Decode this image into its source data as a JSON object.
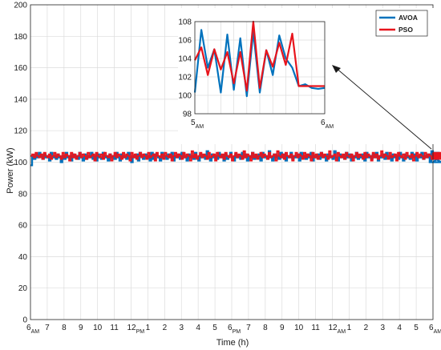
{
  "chart_data": [
    {
      "type": "line",
      "role": "main",
      "xlabel": "Time (h)",
      "ylabel": "Power (kW)",
      "ylim": [
        0,
        200
      ],
      "y_ticks": [
        0,
        20,
        40,
        60,
        80,
        100,
        120,
        140,
        160,
        180,
        200
      ],
      "xlim": [
        0,
        24
      ],
      "x_ticks": [
        {
          "h": 0,
          "num": "6",
          "sub": "AM"
        },
        {
          "h": 1,
          "num": "7",
          "sub": ""
        },
        {
          "h": 2,
          "num": "8",
          "sub": ""
        },
        {
          "h": 3,
          "num": "9",
          "sub": ""
        },
        {
          "h": 4,
          "num": "10",
          "sub": ""
        },
        {
          "h": 5,
          "num": "11",
          "sub": ""
        },
        {
          "h": 6,
          "num": "12",
          "sub": "PM"
        },
        {
          "h": 7,
          "num": "1",
          "sub": ""
        },
        {
          "h": 8,
          "num": "2",
          "sub": ""
        },
        {
          "h": 9,
          "num": "3",
          "sub": ""
        },
        {
          "h": 10,
          "num": "4",
          "sub": ""
        },
        {
          "h": 11,
          "num": "5",
          "sub": ""
        },
        {
          "h": 12,
          "num": "6",
          "sub": "PM"
        },
        {
          "h": 13,
          "num": "7",
          "sub": ""
        },
        {
          "h": 14,
          "num": "8",
          "sub": ""
        },
        {
          "h": 15,
          "num": "9",
          "sub": ""
        },
        {
          "h": 16,
          "num": "10",
          "sub": ""
        },
        {
          "h": 17,
          "num": "11",
          "sub": ""
        },
        {
          "h": 18,
          "num": "12",
          "sub": "AM"
        },
        {
          "h": 19,
          "num": "1",
          "sub": ""
        },
        {
          "h": 20,
          "num": "2",
          "sub": ""
        },
        {
          "h": 21,
          "num": "3",
          "sub": ""
        },
        {
          "h": 22,
          "num": "4",
          "sub": ""
        },
        {
          "h": 23,
          "num": "5",
          "sub": ""
        },
        {
          "h": 24,
          "num": "6",
          "sub": "AM"
        }
      ],
      "grid": true,
      "step": 0.1,
      "series": [
        {
          "name": "AVOA",
          "color": "#0072BD",
          "values": [
            98,
            104,
            102,
            105,
            103,
            106,
            104,
            102,
            105,
            103,
            104,
            101,
            106,
            103,
            104,
            102,
            105,
            103,
            100,
            104,
            102,
            106,
            103,
            104,
            101,
            105,
            103,
            104,
            102,
            106,
            103,
            101,
            105,
            102,
            104,
            103,
            106,
            102,
            104,
            101,
            105,
            103,
            102,
            106,
            103,
            104,
            101,
            105,
            103,
            104,
            102,
            106,
            103,
            101,
            105,
            103,
            104,
            102,
            106,
            103,
            100,
            104,
            103,
            105,
            101,
            106,
            104,
            102,
            105,
            103,
            104,
            101,
            106,
            102,
            105,
            104,
            103,
            101,
            106,
            103,
            104,
            102,
            105,
            103,
            106,
            101,
            104,
            103,
            105,
            102,
            106,
            103,
            104,
            101,
            105,
            103,
            104,
            102,
            106,
            103,
            101,
            105,
            103,
            104,
            102,
            107,
            103,
            101,
            105,
            103,
            104,
            102,
            106,
            103,
            104,
            101,
            105,
            102,
            104,
            106,
            103,
            101,
            105,
            103,
            104,
            102,
            106,
            103,
            105,
            101,
            104,
            103,
            106,
            102,
            104,
            103,
            105,
            101,
            106,
            103,
            104,
            102,
            107,
            103,
            101,
            105,
            103,
            104,
            102,
            106,
            103,
            105,
            101,
            104,
            103,
            106,
            102,
            104,
            103,
            105,
            101,
            106,
            103,
            104,
            102,
            105,
            103,
            106,
            101,
            104,
            103,
            105,
            102,
            106,
            103,
            104,
            101,
            105,
            103,
            104,
            102,
            107,
            103,
            101,
            105,
            103,
            104,
            102,
            106,
            103,
            105,
            101,
            104,
            103,
            106,
            102,
            104,
            103,
            105,
            101,
            106,
            103,
            104,
            102,
            105,
            103,
            106,
            101,
            104,
            103,
            105,
            102,
            106,
            103,
            104,
            101,
            105,
            103,
            104,
            102,
            106,
            103,
            101,
            105,
            103,
            104,
            102,
            106,
            103,
            105,
            101,
            104,
            103,
            106,
            102,
            104,
            103,
            105,
            100,
            107,
            103,
            104,
            102,
            106,
            103,
            100,
            105,
            103
          ]
        },
        {
          "name": "PSO",
          "color": "#E8141C",
          "values": [
            104,
            105,
            103,
            106,
            104,
            103,
            105,
            102,
            106,
            104,
            103,
            105,
            102,
            104,
            106,
            103,
            105,
            104,
            102,
            106,
            103,
            105,
            104,
            101,
            106,
            103,
            105,
            102,
            104,
            106,
            103,
            105,
            104,
            102,
            106,
            103,
            104,
            105,
            101,
            106,
            104,
            103,
            105,
            102,
            106,
            104,
            103,
            105,
            101,
            104,
            106,
            103,
            105,
            104,
            102,
            106,
            103,
            105,
            104,
            101,
            106,
            103,
            105,
            102,
            104,
            106,
            103,
            105,
            104,
            102,
            106,
            103,
            104,
            105,
            101,
            106,
            104,
            103,
            105,
            102,
            106,
            104,
            103,
            105,
            101,
            104,
            106,
            103,
            105,
            104,
            102,
            106,
            103,
            105,
            104,
            101,
            107,
            103,
            105,
            102,
            104,
            106,
            103,
            105,
            104,
            102,
            106,
            103,
            104,
            105,
            101,
            106,
            104,
            103,
            105,
            102,
            106,
            104,
            103,
            105,
            101,
            104,
            106,
            103,
            105,
            104,
            102,
            107,
            103,
            105,
            104,
            101,
            106,
            103,
            105,
            102,
            104,
            106,
            103,
            105,
            104,
            102,
            106,
            103,
            104,
            105,
            101,
            107,
            104,
            103,
            105,
            102,
            106,
            104,
            103,
            105,
            101,
            104,
            106,
            103,
            105,
            104,
            102,
            106,
            103,
            105,
            104,
            101,
            106,
            103,
            105,
            102,
            104,
            106,
            103,
            105,
            104,
            102,
            107,
            103,
            104,
            105,
            101,
            106,
            104,
            103,
            105,
            102,
            106,
            104,
            103,
            105,
            101,
            104,
            106,
            103,
            105,
            104,
            102,
            106,
            103,
            105,
            104,
            101,
            106,
            103,
            105,
            102,
            104,
            107,
            103,
            105,
            104,
            102,
            106,
            103,
            104,
            105,
            101,
            106,
            104,
            103,
            105,
            102,
            106,
            104,
            103,
            105,
            101,
            104,
            106,
            103,
            105,
            104,
            102,
            106,
            103,
            105,
            104,
            102,
            106,
            103,
            105,
            102,
            104,
            106,
            103,
            105,
            104,
            102,
            106
          ]
        }
      ]
    },
    {
      "type": "line",
      "role": "inset",
      "ylim": [
        98,
        108
      ],
      "y_ticks": [
        98,
        100,
        102,
        104,
        106,
        108
      ],
      "xlim": [
        5,
        6
      ],
      "x_ticks": [
        {
          "h": 5,
          "num": "5",
          "sub": "AM"
        },
        {
          "h": 6,
          "num": "6",
          "sub": "AM"
        }
      ],
      "grid": true,
      "series": [
        {
          "name": "AVOA",
          "color": "#0072BD",
          "x": [
            5,
            5.05,
            5.1,
            5.15,
            5.2,
            5.25,
            5.3,
            5.35,
            5.4,
            5.45,
            5.5,
            5.55,
            5.6,
            5.65,
            5.7,
            5.75,
            5.8,
            5.85,
            5.9,
            5.95,
            6
          ],
          "values": [
            100.3,
            107.1,
            103.0,
            105.0,
            100.3,
            106.6,
            100.6,
            106.2,
            99.9,
            106.9,
            100.3,
            104.9,
            102.2,
            106.5,
            104.0,
            103.0,
            101.0,
            101.2,
            100.8,
            100.7,
            100.8
          ]
        },
        {
          "name": "PSO",
          "color": "#E8141C",
          "x": [
            5,
            5.05,
            5.1,
            5.15,
            5.2,
            5.25,
            5.3,
            5.35,
            5.4,
            5.45,
            5.5,
            5.55,
            5.6,
            5.65,
            5.7,
            5.75,
            5.8,
            5.85,
            5.9,
            5.95,
            6
          ],
          "values": [
            103.8,
            105.2,
            102.2,
            105.0,
            102.8,
            104.7,
            101.3,
            104.7,
            100.5,
            108.0,
            100.8,
            104.9,
            103.1,
            105.7,
            103.3,
            106.7,
            101.0,
            101.0,
            101.0,
            101.0,
            101.0
          ]
        }
      ],
      "legend": "top-right"
    }
  ],
  "legend": {
    "items": [
      {
        "label": "AVOA",
        "color": "#0072BD"
      },
      {
        "label": "PSO",
        "color": "#E8141C"
      }
    ]
  }
}
